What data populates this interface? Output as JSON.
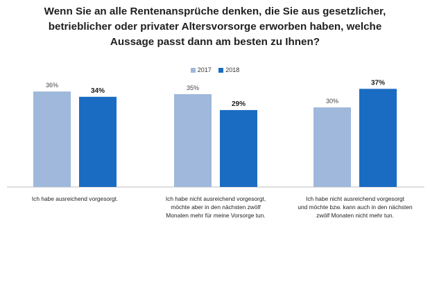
{
  "title_lines": [
    "Wenn Sie an alle Rentenansprüche denken, die Sie aus gesetzlicher,",
    "betrieblicher oder privater Altersvorsorge erworben haben, welche",
    "Aussage passt dann am besten zu Ihnen?"
  ],
  "colors": {
    "series_2017": "#9fb8db",
    "series_2018": "#1a6cc3",
    "axis": "#bdbdbd"
  },
  "chart_data": {
    "type": "bar",
    "title": "Wenn Sie an alle Rentenansprüche denken, die Sie aus gesetzlicher, betrieblicher oder privater Altersvorsorge erworben haben, welche Aussage passt dann am besten zu Ihnen?",
    "categories": [
      [
        "Ich habe ausreichend vorgesorgt."
      ],
      [
        "Ich habe nicht ausreichend vorgesorgt,",
        "möchte aber in den nächsten zwölf",
        "Monaten mehr für meine Vorsorge tun."
      ],
      [
        "Ich habe nicht ausreichend vorgesorgt",
        "und möchte bzw. kann auch in den nächsten",
        "zwölf Monaten nicht mehr tun."
      ]
    ],
    "series": [
      {
        "name": "2017",
        "values": [
          36,
          35,
          30
        ],
        "labels": [
          "36%",
          "35%",
          "30%"
        ]
      },
      {
        "name": "2018",
        "values": [
          34,
          29,
          37
        ],
        "labels": [
          "34%",
          "29%",
          "37%"
        ]
      }
    ],
    "legend": "top-center",
    "grid": false,
    "ylim": [
      0,
      40
    ]
  }
}
